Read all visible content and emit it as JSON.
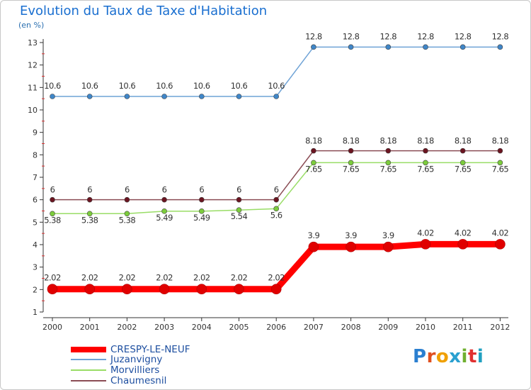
{
  "title": "Evolution du Taux de Taxe d'Habitation",
  "unit_label": "(en %)",
  "logo_text": "Proxiti",
  "chart_data": {
    "type": "line",
    "title": "Evolution du Taux de Taxe d'Habitation",
    "ylabel": "(en %)",
    "xlabel": "",
    "ylim": [
      1,
      13
    ],
    "yticks": [
      1,
      2,
      3,
      4,
      5,
      6,
      7,
      8,
      9,
      10,
      11,
      12,
      13
    ],
    "grid": false,
    "legend_position": "bottom-left",
    "categories": [
      "2000",
      "2001",
      "2002",
      "2003",
      "2004",
      "2005",
      "2006",
      "2007",
      "2008",
      "2009",
      "2010",
      "2011",
      "2012"
    ],
    "series": [
      {
        "name": "CRESPY-LE-NEUF",
        "color": "#ff0000",
        "values": [
          2.02,
          2.02,
          2.02,
          2.02,
          2.02,
          2.02,
          2.02,
          3.9,
          3.9,
          3.9,
          4.02,
          4.02,
          4.02
        ],
        "labels": [
          "2.02",
          "2.02",
          "2.02",
          "2.02",
          "2.02",
          "2.02",
          "2.02",
          "3.9",
          "3.9",
          "3.9",
          "4.02",
          "4.02",
          "4.02"
        ]
      },
      {
        "name": "Juzanvigny",
        "color": "#6fa3d6",
        "values": [
          10.6,
          10.6,
          10.6,
          10.6,
          10.6,
          10.6,
          10.6,
          12.8,
          12.8,
          12.8,
          12.8,
          12.8,
          12.8
        ],
        "labels": [
          "10.6",
          "10.6",
          "10.6",
          "10.6",
          "10.6",
          "10.6",
          "10.6",
          "12.8",
          "12.8",
          "12.8",
          "12.8",
          "12.8",
          "12.8"
        ]
      },
      {
        "name": "Morvilliers",
        "color": "#99dd66",
        "values": [
          5.38,
          5.38,
          5.38,
          5.49,
          5.49,
          5.54,
          5.6,
          7.65,
          7.65,
          7.65,
          7.65,
          7.65,
          7.65
        ],
        "labels": [
          "5.38",
          "5.38",
          "5.38",
          "5.49",
          "5.49",
          "5.54",
          "5.6",
          "7.65",
          "7.65",
          "7.65",
          "7.65",
          "7.65",
          "7.65"
        ]
      },
      {
        "name": "Chaumesnil",
        "color": "#8b4d55",
        "values": [
          6,
          6,
          6,
          6,
          6,
          6,
          6,
          8.18,
          8.18,
          8.18,
          8.18,
          8.18,
          8.18
        ],
        "labels": [
          "6",
          "6",
          "6",
          "6",
          "6",
          "6",
          "6",
          "8.18",
          "8.18",
          "8.18",
          "8.18",
          "8.18",
          "8.18"
        ]
      }
    ]
  }
}
